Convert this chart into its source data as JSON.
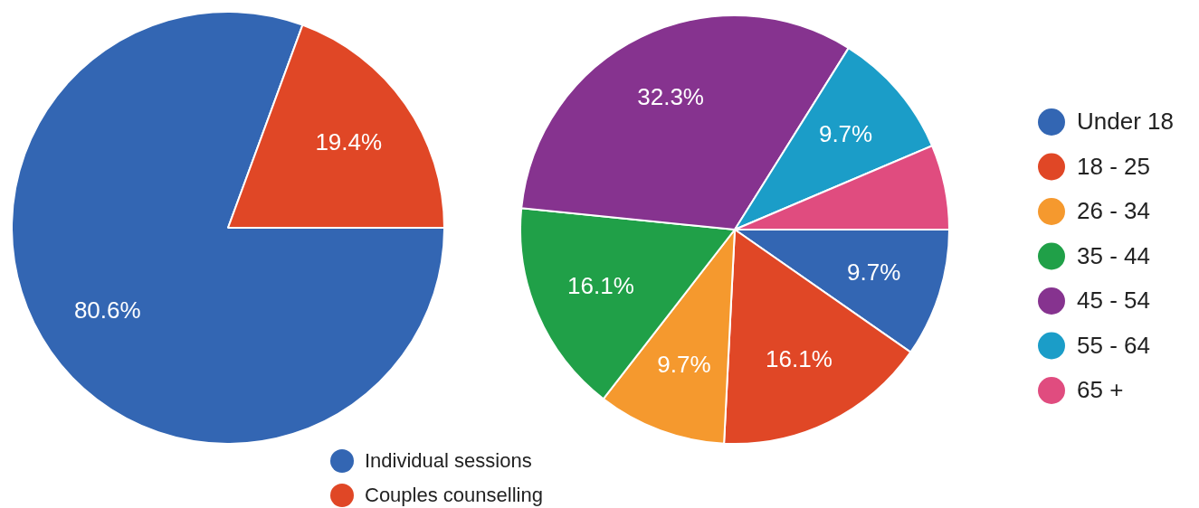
{
  "chart_data": [
    {
      "type": "pie",
      "categories": [
        "Individual sessions",
        "Couples counselling"
      ],
      "values": [
        80.6,
        19.4
      ],
      "colors": [
        "#3366b3",
        "#e04726"
      ],
      "value_labels": [
        "80.6%",
        "19.4%"
      ],
      "legend": "bottom"
    },
    {
      "type": "pie",
      "categories": [
        "Under 18",
        "18 - 25",
        "26 - 34",
        "35 - 44",
        "45 - 54",
        "55 - 64",
        "65 +"
      ],
      "values": [
        9.7,
        16.1,
        9.7,
        16.1,
        32.3,
        9.7,
        6.4
      ],
      "colors": [
        "#3366b3",
        "#e04726",
        "#f5992e",
        "#20a048",
        "#86338f",
        "#1b9dc8",
        "#e04c7f"
      ],
      "value_labels": [
        "9.7%",
        "16.1%",
        "9.7%",
        "16.1%",
        "32.3%",
        "9.7%",
        null
      ],
      "legend": "right"
    }
  ]
}
